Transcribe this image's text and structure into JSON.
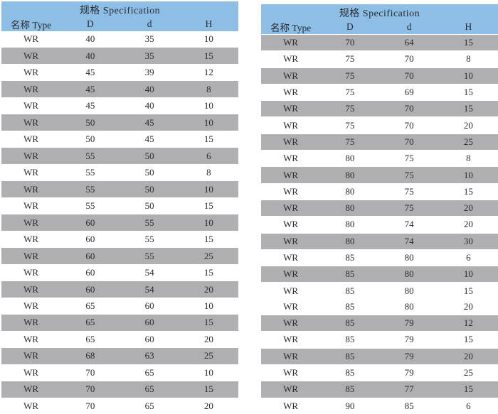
{
  "colors": {
    "header_blue": "#8CBEE6",
    "row_gray": "#AFAFB2",
    "text": "#2B2B30",
    "background": "#FFFFFF"
  },
  "tables": [
    {
      "title": "规格 Specification",
      "columns": [
        "名称 Type",
        "D",
        "d",
        "H"
      ],
      "rows": [
        {
          "cells": [
            "WR",
            "40",
            "35",
            "10"
          ],
          "shade": "white"
        },
        {
          "cells": [
            "WR",
            "40",
            "35",
            "15"
          ],
          "shade": "gray"
        },
        {
          "cells": [
            "WR",
            "45",
            "39",
            "12"
          ],
          "shade": "white"
        },
        {
          "cells": [
            "WR",
            "45",
            "40",
            "8"
          ],
          "shade": "gray"
        },
        {
          "cells": [
            "WR",
            "45",
            "40",
            "10"
          ],
          "shade": "white"
        },
        {
          "cells": [
            "WR",
            "50",
            "45",
            "10"
          ],
          "shade": "gray"
        },
        {
          "cells": [
            "WR",
            "50",
            "45",
            "15"
          ],
          "shade": "white"
        },
        {
          "cells": [
            "WR",
            "55",
            "50",
            "6"
          ],
          "shade": "gray"
        },
        {
          "cells": [
            "WR",
            "55",
            "50",
            "8"
          ],
          "shade": "white"
        },
        {
          "cells": [
            "WR",
            "55",
            "50",
            "10"
          ],
          "shade": "gray"
        },
        {
          "cells": [
            "WR",
            "55",
            "50",
            "15"
          ],
          "shade": "white"
        },
        {
          "cells": [
            "WR",
            "60",
            "55",
            "10"
          ],
          "shade": "gray"
        },
        {
          "cells": [
            "WR",
            "60",
            "55",
            "15"
          ],
          "shade": "white"
        },
        {
          "cells": [
            "WR",
            "60",
            "55",
            "25"
          ],
          "shade": "gray"
        },
        {
          "cells": [
            "WR",
            "60",
            "54",
            "15"
          ],
          "shade": "white"
        },
        {
          "cells": [
            "WR",
            "60",
            "54",
            "20"
          ],
          "shade": "gray"
        },
        {
          "cells": [
            "WR",
            "65",
            "60",
            "10"
          ],
          "shade": "white"
        },
        {
          "cells": [
            "WR",
            "65",
            "60",
            "15"
          ],
          "shade": "gray"
        },
        {
          "cells": [
            "WR",
            "65",
            "60",
            "20"
          ],
          "shade": "white"
        },
        {
          "cells": [
            "WR",
            "68",
            "63",
            "25"
          ],
          "shade": "gray"
        },
        {
          "cells": [
            "WR",
            "70",
            "65",
            "10"
          ],
          "shade": "white"
        },
        {
          "cells": [
            "WR",
            "70",
            "65",
            "15"
          ],
          "shade": "gray"
        },
        {
          "cells": [
            "WR",
            "70",
            "65",
            "20"
          ],
          "shade": "white"
        }
      ]
    },
    {
      "title": "规格 Specification",
      "columns": [
        "名称 Type",
        "D",
        "d",
        "H"
      ],
      "rows": [
        {
          "cells": [
            "WR",
            "70",
            "64",
            "15"
          ],
          "shade": "gray"
        },
        {
          "cells": [
            "WR",
            "75",
            "70",
            "8"
          ],
          "shade": "white"
        },
        {
          "cells": [
            "WR",
            "75",
            "70",
            "10"
          ],
          "shade": "gray"
        },
        {
          "cells": [
            "WR",
            "75",
            "69",
            "15"
          ],
          "shade": "white"
        },
        {
          "cells": [
            "WR",
            "75",
            "70",
            "15"
          ],
          "shade": "gray"
        },
        {
          "cells": [
            "WR",
            "75",
            "70",
            "20"
          ],
          "shade": "white"
        },
        {
          "cells": [
            "WR",
            "75",
            "70",
            "25"
          ],
          "shade": "gray"
        },
        {
          "cells": [
            "WR",
            "80",
            "75",
            "8"
          ],
          "shade": "white"
        },
        {
          "cells": [
            "WR",
            "80",
            "75",
            "10"
          ],
          "shade": "gray"
        },
        {
          "cells": [
            "WR",
            "80",
            "75",
            "15"
          ],
          "shade": "white"
        },
        {
          "cells": [
            "WR",
            "80",
            "75",
            "20"
          ],
          "shade": "gray"
        },
        {
          "cells": [
            "WR",
            "80",
            "74",
            "20"
          ],
          "shade": "white"
        },
        {
          "cells": [
            "WR",
            "80",
            "74",
            "30"
          ],
          "shade": "gray"
        },
        {
          "cells": [
            "WR",
            "85",
            "80",
            "6"
          ],
          "shade": "white"
        },
        {
          "cells": [
            "WR",
            "85",
            "80",
            "10"
          ],
          "shade": "gray"
        },
        {
          "cells": [
            "WR",
            "85",
            "80",
            "15"
          ],
          "shade": "white"
        },
        {
          "cells": [
            "WR",
            "85",
            "80",
            "20"
          ],
          "shade": "white"
        },
        {
          "cells": [
            "WR",
            "85",
            "79",
            "12"
          ],
          "shade": "gray"
        },
        {
          "cells": [
            "WR",
            "85",
            "79",
            "15"
          ],
          "shade": "white"
        },
        {
          "cells": [
            "WR",
            "85",
            "79",
            "20"
          ],
          "shade": "gray"
        },
        {
          "cells": [
            "WR",
            "85",
            "79",
            "25"
          ],
          "shade": "white"
        },
        {
          "cells": [
            "WR",
            "85",
            "77",
            "15"
          ],
          "shade": "gray"
        },
        {
          "cells": [
            "WR",
            "90",
            "85",
            "6"
          ],
          "shade": "white"
        }
      ]
    }
  ]
}
